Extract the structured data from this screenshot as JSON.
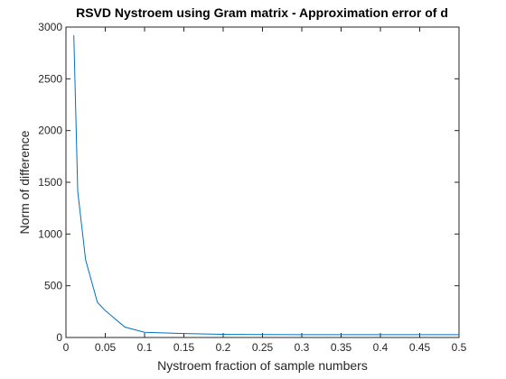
{
  "chart_data": {
    "type": "line",
    "title": "RSVD Nystroem using Gram matrix - Approximation error of d",
    "xlabel": "Nystroem fraction of sample numbers",
    "ylabel": "Norm of difference",
    "xlim": [
      0,
      0.5
    ],
    "ylim": [
      0,
      3000
    ],
    "xticks": [
      0,
      0.05,
      0.1,
      0.15,
      0.2,
      0.25,
      0.3,
      0.35,
      0.4,
      0.45,
      0.5
    ],
    "xtick_labels": [
      "0",
      "0.05",
      "0.1",
      "0.15",
      "0.2",
      "0.25",
      "0.3",
      "0.35",
      "0.4",
      "0.45",
      "0.5"
    ],
    "yticks": [
      0,
      500,
      1000,
      1500,
      2000,
      2500,
      3000
    ],
    "ytick_labels": [
      "0",
      "500",
      "1000",
      "1500",
      "2000",
      "2500",
      "3000"
    ],
    "grid": false,
    "series": [
      {
        "color": "#0072bd",
        "x": [
          0.01,
          0.015,
          0.025,
          0.04,
          0.05,
          0.075,
          0.1,
          0.15,
          0.2,
          0.25,
          0.3,
          0.35,
          0.4,
          0.45,
          0.5
        ],
        "y": [
          2920,
          1410,
          750,
          340,
          260,
          100,
          50,
          38,
          30,
          28,
          27,
          27,
          27,
          27,
          27
        ]
      }
    ]
  }
}
